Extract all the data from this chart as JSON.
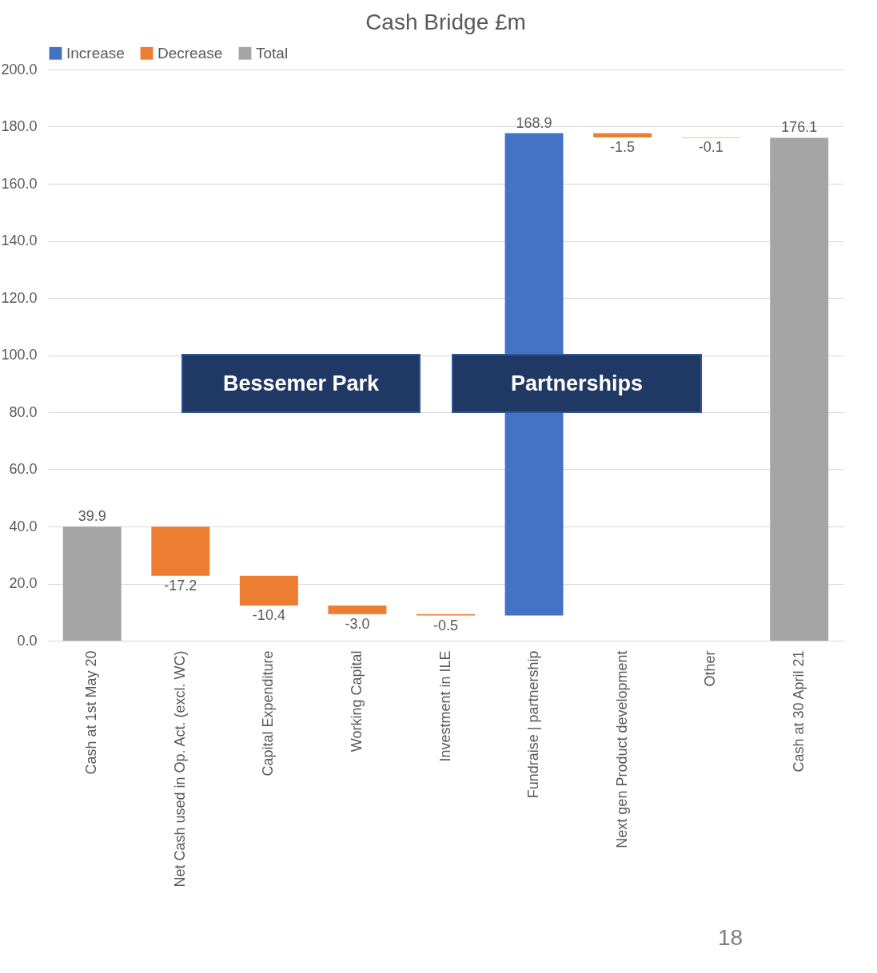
{
  "chart_data": {
    "type": "bar",
    "title": "Cash Bridge £m",
    "categories": [
      "Cash at 1st May 20",
      "Net Cash used in Op. Act. (excl. WC)",
      "Capital Expenditure",
      "Working Capital",
      "Investment in ILE",
      "Fundraise | partnership",
      "Next gen Product development",
      "Other",
      "Cash at 30 April 21"
    ],
    "series": [
      {
        "name": "Increase",
        "color": "#4472c4",
        "values": [
          null,
          null,
          null,
          null,
          null,
          168.9,
          null,
          null,
          null
        ],
        "base": [
          null,
          null,
          null,
          null,
          null,
          8.8,
          null,
          null,
          null
        ],
        "value_labels": [
          null,
          null,
          null,
          null,
          null,
          "168.9",
          null,
          null,
          null
        ]
      },
      {
        "name": "Decrease",
        "color": "#ed7d31",
        "values": [
          null,
          -17.2,
          -10.4,
          -3.0,
          -0.5,
          null,
          -1.5,
          -0.1,
          null
        ],
        "base": [
          null,
          39.9,
          22.7,
          12.3,
          9.3,
          null,
          177.7,
          176.2,
          null
        ],
        "value_labels": [
          null,
          "-17.2",
          "-10.4",
          "-3.0",
          "-0.5",
          null,
          "-1.5",
          "-0.1",
          null
        ]
      },
      {
        "name": "Total",
        "color": "#a5a5a5",
        "values": [
          39.9,
          null,
          null,
          null,
          null,
          null,
          null,
          null,
          176.1
        ],
        "value_labels": [
          "39.9",
          null,
          null,
          null,
          null,
          null,
          null,
          null,
          "176.1"
        ]
      }
    ],
    "ylim": [
      0,
      200
    ],
    "yticks": [
      {
        "value": 0,
        "label": "0.0"
      },
      {
        "value": 20,
        "label": "20.0"
      },
      {
        "value": 40,
        "label": "40.0"
      },
      {
        "value": 60,
        "label": "60.0"
      },
      {
        "value": 80,
        "label": "80.0"
      },
      {
        "value": 100,
        "label": "100.0"
      },
      {
        "value": 120,
        "label": "120.0"
      },
      {
        "value": 140,
        "label": "140.0"
      },
      {
        "value": 160,
        "label": "160.0"
      },
      {
        "value": 180,
        "label": "180.0"
      },
      {
        "value": 200,
        "label": "200.0"
      }
    ],
    "grid": "y",
    "legend": "top",
    "annotations": [
      "Bessemer Park",
      "Partnerships",
      "18"
    ]
  }
}
